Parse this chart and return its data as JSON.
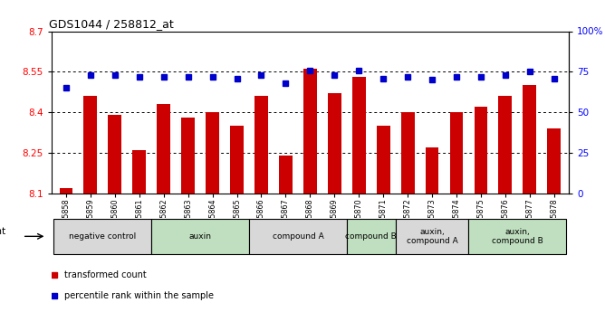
{
  "title": "GDS1044 / 258812_at",
  "samples": [
    "GSM25858",
    "GSM25859",
    "GSM25860",
    "GSM25861",
    "GSM25862",
    "GSM25863",
    "GSM25864",
    "GSM25865",
    "GSM25866",
    "GSM25867",
    "GSM25868",
    "GSM25869",
    "GSM25870",
    "GSM25871",
    "GSM25872",
    "GSM25873",
    "GSM25874",
    "GSM25875",
    "GSM25876",
    "GSM25877",
    "GSM25878"
  ],
  "bar_values": [
    8.12,
    8.46,
    8.39,
    8.26,
    8.43,
    8.38,
    8.4,
    8.35,
    8.46,
    8.24,
    8.56,
    8.47,
    8.53,
    8.35,
    8.4,
    8.27,
    8.4,
    8.42,
    8.46,
    8.5,
    8.34
  ],
  "dot_values": [
    65,
    73,
    73,
    72,
    72,
    72,
    72,
    71,
    73,
    68,
    76,
    73,
    76,
    71,
    72,
    70,
    72,
    72,
    73,
    75,
    71
  ],
  "ylim_left": [
    8.1,
    8.7
  ],
  "ylim_right": [
    0,
    100
  ],
  "yticks_left": [
    8.1,
    8.25,
    8.4,
    8.55,
    8.7
  ],
  "yticks_right": [
    0,
    25,
    50,
    75,
    100
  ],
  "ytick_labels_right": [
    "0",
    "25",
    "50",
    "75",
    "100%"
  ],
  "gridlines": [
    8.25,
    8.4,
    8.55
  ],
  "bar_color": "#cc0000",
  "dot_color": "#0000cc",
  "agent_groups": [
    {
      "label": "negative control",
      "start": 0,
      "end": 4,
      "color": "#d8d8d8"
    },
    {
      "label": "auxin",
      "start": 4,
      "end": 8,
      "color": "#c0dfc0"
    },
    {
      "label": "compound A",
      "start": 8,
      "end": 12,
      "color": "#d8d8d8"
    },
    {
      "label": "compound B",
      "start": 12,
      "end": 14,
      "color": "#c0dfc0"
    },
    {
      "label": "auxin,\ncompound A",
      "start": 14,
      "end": 17,
      "color": "#d8d8d8"
    },
    {
      "label": "auxin,\ncompound B",
      "start": 17,
      "end": 21,
      "color": "#c0dfc0"
    }
  ],
  "legend_bar_label": "transformed count",
  "legend_dot_label": "percentile rank within the sample",
  "bar_width": 0.55
}
